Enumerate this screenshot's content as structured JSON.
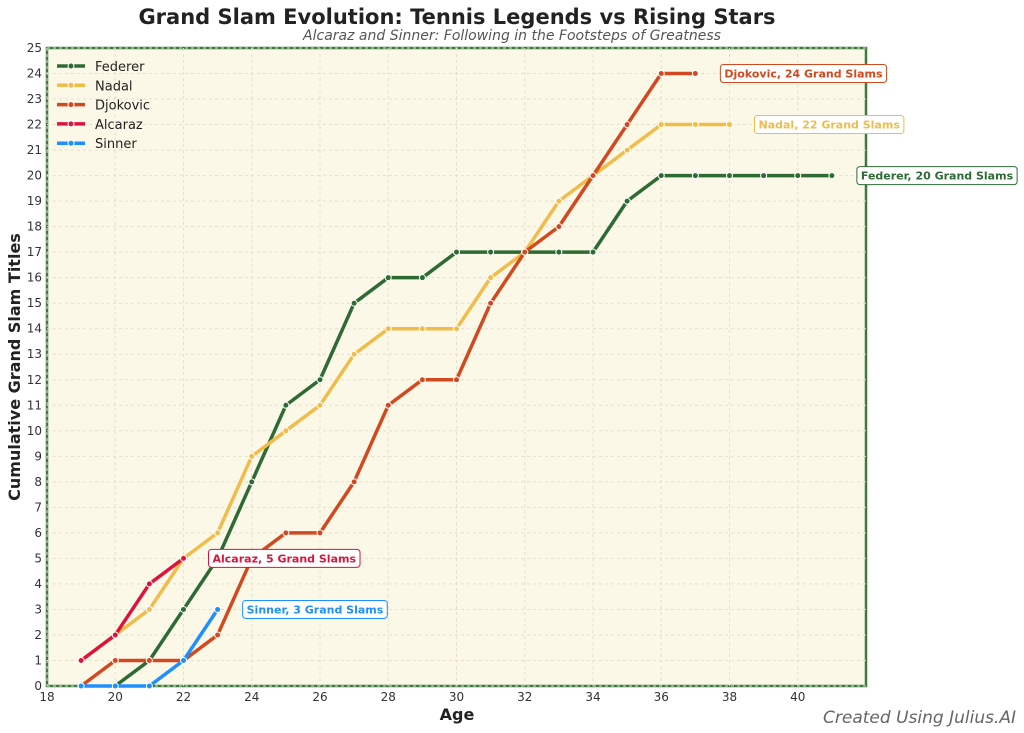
{
  "chart_data": {
    "type": "line",
    "title": "Grand Slam Evolution: Tennis Legends vs Rising Stars",
    "subtitle": "Alcaraz and Sinner: Following in the Footsteps of Greatness",
    "xlabel": "Age",
    "ylabel": "Cumulative Grand Slam Titles",
    "xlim": [
      18,
      42
    ],
    "ylim": [
      0,
      25
    ],
    "xticks": [
      18,
      20,
      22,
      24,
      26,
      28,
      30,
      32,
      34,
      36,
      38,
      40
    ],
    "yticks": [
      0,
      1,
      2,
      3,
      4,
      5,
      6,
      7,
      8,
      9,
      10,
      11,
      12,
      13,
      14,
      15,
      16,
      17,
      18,
      19,
      20,
      21,
      22,
      23,
      24,
      25
    ],
    "grid": true,
    "legend_placement": "top-left",
    "series": [
      {
        "name": "Federer",
        "color": "#2e6b34",
        "dashed": false,
        "x": [
          20,
          21,
          22,
          23,
          24,
          25,
          26,
          27,
          28,
          29,
          30,
          31,
          32,
          33,
          34,
          35,
          36,
          37,
          38,
          39,
          40,
          41
        ],
        "y": [
          0,
          1,
          3,
          5,
          8,
          11,
          12,
          15,
          16,
          16,
          17,
          17,
          17,
          17,
          17,
          19,
          20,
          20,
          20,
          20,
          20,
          20
        ],
        "annotation": "Federer, 20 Grand Slams"
      },
      {
        "name": "Nadal",
        "color": "#f0bc4a",
        "x": [
          19,
          20,
          21,
          22,
          23,
          24,
          25,
          26,
          27,
          28,
          29,
          30,
          31,
          32,
          33,
          34,
          35,
          36,
          37,
          38
        ],
        "y": [
          1,
          2,
          3,
          5,
          6,
          9,
          10,
          11,
          13,
          14,
          14,
          14,
          16,
          17,
          19,
          20,
          21,
          22,
          22,
          22
        ],
        "annotation": "Nadal, 22 Grand Slams"
      },
      {
        "name": "Djokovic",
        "color": "#d2491f",
        "x": [
          19,
          20,
          21,
          22,
          23,
          24,
          25,
          26,
          27,
          28,
          29,
          30,
          31,
          32,
          33,
          34,
          35,
          36,
          37
        ],
        "y": [
          0,
          1,
          1,
          1,
          2,
          5,
          6,
          6,
          8,
          11,
          12,
          12,
          15,
          17,
          18,
          20,
          22,
          24,
          24
        ],
        "annotation": "Djokovic, 24 Grand Slams"
      },
      {
        "name": "Alcaraz",
        "color": "#dc143c",
        "x": [
          19,
          20,
          21,
          22
        ],
        "y": [
          1,
          2,
          4,
          5
        ],
        "annotation": "Alcaraz, 5 Grand Slams"
      },
      {
        "name": "Sinner",
        "color": "#1e8fff",
        "x": [
          19,
          20,
          21,
          22,
          23
        ],
        "y": [
          0,
          0,
          0,
          1,
          3
        ],
        "annotation": "Sinner, 3 Grand Slams"
      }
    ]
  },
  "watermark": "Created Using Julius.AI"
}
